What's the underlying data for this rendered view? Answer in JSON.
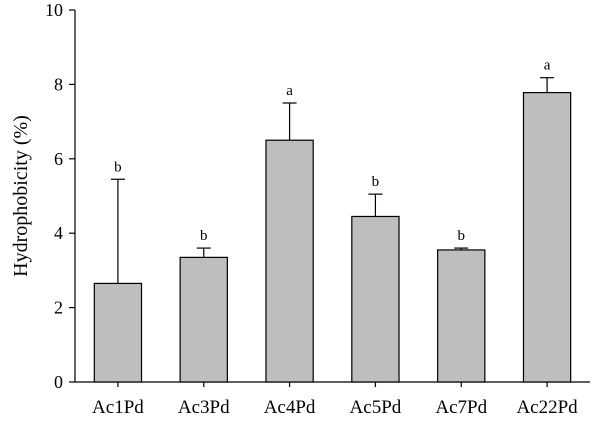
{
  "chart_data": {
    "type": "bar",
    "categories": [
      "Ac1Pd",
      "Ac3Pd",
      "Ac4Pd",
      "Ac5Pd",
      "Ac7Pd",
      "Ac22Pd"
    ],
    "values": [
      2.65,
      3.35,
      6.5,
      4.45,
      3.55,
      7.78
    ],
    "errors": [
      2.8,
      0.25,
      1.0,
      0.6,
      0.05,
      0.4
    ],
    "significance": [
      "b",
      "b",
      "a",
      "b",
      "b",
      "a"
    ],
    "title": "",
    "xlabel": "",
    "ylabel": "Hydrophobicity (%)",
    "ylim": [
      0,
      10
    ],
    "yticks": [
      0,
      2,
      4,
      6,
      8,
      10
    ],
    "bar_color": "#bebebe",
    "edge_color": "#000000",
    "grid": false
  }
}
